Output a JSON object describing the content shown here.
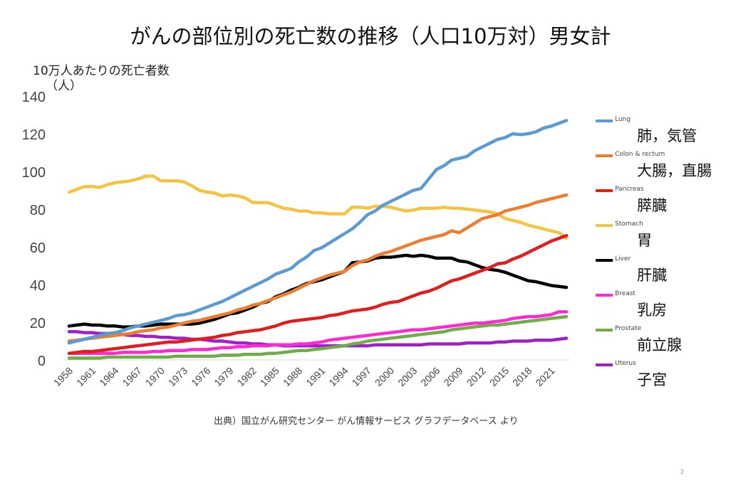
{
  "page": {
    "title": "がんの部位別の死亡数の推移（人口10万対）男女計",
    "ylabel_line1": "10万人あたりの死亡者数",
    "ylabel_line2": "（人）",
    "source": "出典）国立がん研究センター がん情報サービス グラフデータベース より",
    "page_number": "2"
  },
  "chart_data": {
    "type": "line",
    "title": "がんの部位別の死亡数の推移（人口10万対）男女計",
    "xlabel": "",
    "ylabel": "10万人あたりの死亡者数（人）",
    "ylim": [
      0,
      140
    ],
    "yticks": [
      0,
      20,
      40,
      60,
      80,
      100,
      120,
      140
    ],
    "grid": false,
    "legend_position": "right",
    "x": [
      1958,
      1959,
      1960,
      1961,
      1962,
      1963,
      1964,
      1965,
      1966,
      1967,
      1968,
      1969,
      1970,
      1971,
      1972,
      1973,
      1974,
      1975,
      1976,
      1977,
      1978,
      1979,
      1980,
      1981,
      1982,
      1983,
      1984,
      1985,
      1986,
      1987,
      1988,
      1989,
      1990,
      1991,
      1992,
      1993,
      1994,
      1995,
      1996,
      1997,
      1998,
      1999,
      2000,
      2001,
      2002,
      2003,
      2004,
      2005,
      2006,
      2007,
      2008,
      2009,
      2010,
      2011,
      2012,
      2013,
      2014,
      2015,
      2016,
      2017,
      2018,
      2019,
      2020,
      2021,
      2022,
      2023
    ],
    "xtick_labels": [
      "1958",
      "1961",
      "1964",
      "1967",
      "1970",
      "1973",
      "1976",
      "1979",
      "1982",
      "1985",
      "1988",
      "1991",
      "1994",
      "1997",
      "2000",
      "2003",
      "2006",
      "2009",
      "2012",
      "2015",
      "2018",
      "2021"
    ],
    "series": [
      {
        "name": "Lung",
        "name_ja": "肺，気管",
        "color": "#5b9bd5",
        "values": [
          9,
          10,
          11,
          12,
          13,
          14,
          14.5,
          15.5,
          17,
          18,
          19,
          20,
          21,
          22,
          23.5,
          24,
          25,
          26.5,
          28,
          29.5,
          31,
          33,
          35,
          37,
          39,
          41,
          43,
          45.5,
          47,
          48.5,
          52,
          54.5,
          58,
          59.5,
          62,
          64.5,
          67,
          69.5,
          73,
          77,
          79,
          82,
          84,
          86,
          88,
          90,
          91,
          96,
          101,
          103,
          106,
          107,
          108,
          111,
          113,
          115,
          117,
          118,
          120,
          119.5,
          120,
          121,
          123,
          124,
          125.5,
          127
        ]
      },
      {
        "name": "Colon & rectum",
        "name_ja": "大腸，直腸",
        "color": "#ed7d31",
        "values": [
          10,
          10.5,
          11,
          11.5,
          12,
          12.5,
          13,
          13.5,
          14,
          15,
          15.5,
          16,
          17,
          17.5,
          18.5,
          19.5,
          20.5,
          21,
          22,
          23,
          24,
          25,
          26.5,
          27.5,
          29,
          30,
          31.5,
          33,
          34.5,
          36,
          38,
          40,
          42,
          43.5,
          45,
          46,
          47,
          50,
          52,
          53,
          55,
          56.5,
          57.5,
          59,
          60.5,
          62,
          63.5,
          64.5,
          65.5,
          66.5,
          68.5,
          67.5,
          70,
          72.5,
          75,
          76,
          77,
          79,
          80,
          81,
          82,
          83.5,
          84.5,
          85.5,
          86.5,
          87.5
        ]
      },
      {
        "name": "Pancreas",
        "name_ja": "膵臓",
        "color": "#e01e1e",
        "values": [
          3.5,
          4,
          4.5,
          4.5,
          5,
          5.5,
          6,
          6.5,
          7,
          7.5,
          8,
          8.5,
          9,
          9.5,
          9.5,
          10,
          10.5,
          11,
          11.5,
          12,
          13,
          13.5,
          14.5,
          15,
          15.5,
          16,
          17,
          18,
          19.5,
          20.5,
          21,
          21.5,
          22,
          22.5,
          23.5,
          24,
          25,
          26,
          26.5,
          27,
          28,
          29.5,
          30.5,
          31,
          32.5,
          34,
          35.5,
          36.5,
          38,
          40,
          42,
          43,
          44.5,
          46,
          47.5,
          49,
          51,
          51.5,
          53.5,
          55,
          57,
          59,
          61,
          63,
          64.5,
          66
        ]
      },
      {
        "name": "Stomach",
        "name_ja": "胃",
        "color": "#f5c342",
        "values": [
          89,
          90.5,
          92,
          92,
          91.5,
          93,
          94,
          94.5,
          95,
          96,
          97.5,
          97.5,
          95,
          95,
          95,
          94.5,
          92.5,
          90,
          89,
          88.5,
          87,
          87.5,
          87,
          86,
          83.5,
          83.5,
          83.5,
          82,
          80.5,
          80,
          79,
          79,
          78,
          78,
          77.5,
          77.5,
          77.5,
          81,
          81,
          80.5,
          81.5,
          81.5,
          81,
          80,
          79,
          79.5,
          80.5,
          80.5,
          80.5,
          81,
          80.5,
          80.5,
          80,
          79.5,
          79,
          78.5,
          77.5,
          75,
          74,
          73,
          71.5,
          70.5,
          69.5,
          68.5,
          67.5,
          64.5
        ]
      },
      {
        "name": "Liver",
        "name_ja": "肝臓",
        "color": "#000000",
        "values": [
          18,
          18.5,
          19,
          18.5,
          18.5,
          18,
          18,
          17.5,
          17.5,
          18,
          18,
          18.5,
          19,
          19,
          19,
          19,
          19,
          19.5,
          20.5,
          21.5,
          23,
          24.5,
          25,
          26.5,
          28,
          30,
          31,
          33.5,
          35,
          37,
          38.5,
          40.5,
          41.5,
          42.5,
          44,
          45.5,
          47,
          51.5,
          52,
          52.5,
          54,
          54.5,
          54.5,
          55,
          55.5,
          55,
          55.5,
          55,
          54,
          54,
          54,
          52.5,
          52,
          50.5,
          49,
          48,
          47.5,
          46.5,
          45,
          43.5,
          42,
          41.5,
          40.5,
          39.5,
          39,
          38.5
        ]
      },
      {
        "name": "Breast",
        "name_ja": "乳房",
        "color": "#ff29d4",
        "values": [
          3.5,
          3.5,
          3.5,
          3.5,
          3.5,
          3.5,
          3.5,
          4,
          4,
          4,
          4,
          4.5,
          4.5,
          5,
          5,
          5,
          5.5,
          5.5,
          5.5,
          6,
          6.5,
          6.5,
          7,
          7,
          7.5,
          7.5,
          7.5,
          8,
          8,
          8,
          8.5,
          8.5,
          9,
          9.5,
          10.5,
          11,
          11.5,
          12,
          12.5,
          13,
          13.5,
          14,
          14.5,
          15,
          15.5,
          16,
          16,
          16.5,
          17,
          17.5,
          18,
          18.5,
          19,
          19.5,
          19.5,
          20,
          20.5,
          21,
          22,
          22.5,
          23,
          23,
          23.5,
          24,
          25.5,
          25.5
        ]
      },
      {
        "name": "Prostate",
        "name_ja": "前立腺",
        "color": "#70ad47",
        "values": [
          1,
          1,
          1,
          1,
          1,
          1.5,
          1.5,
          1.5,
          1.5,
          1.5,
          1.5,
          1.5,
          1.5,
          1.5,
          2,
          2,
          2,
          2,
          2,
          2,
          2.5,
          2.5,
          2.5,
          3,
          3,
          3,
          3.5,
          3.5,
          4,
          4.5,
          5,
          5,
          5.5,
          6,
          6.5,
          7,
          7.5,
          8.5,
          9,
          10,
          10.5,
          11,
          11.5,
          12,
          12.5,
          13,
          13.5,
          14,
          14.5,
          15,
          16,
          16.5,
          17,
          17.5,
          18,
          18.5,
          18.5,
          19,
          19.5,
          20,
          20.5,
          21,
          21.5,
          22,
          22.5,
          23
        ]
      },
      {
        "name": "Uterus",
        "name_ja": "子宮",
        "color": "#a020c8",
        "values": [
          15,
          15,
          14.5,
          14.5,
          14,
          14,
          13.5,
          13.5,
          13,
          13,
          12.5,
          12.5,
          12,
          12,
          11.5,
          11.5,
          11,
          11,
          10.5,
          10,
          10,
          9.5,
          9,
          9,
          8.5,
          8.5,
          8,
          8,
          7.5,
          7.5,
          7.5,
          7.5,
          7.5,
          7.5,
          7.5,
          7.5,
          7.5,
          7.5,
          7.5,
          7.5,
          8,
          8,
          8,
          8,
          8,
          8,
          8,
          8.5,
          8.5,
          8.5,
          8.5,
          8.5,
          9,
          9,
          9,
          9,
          9.5,
          9.5,
          10,
          10,
          10,
          10.5,
          10.5,
          10.5,
          11,
          11.5
        ]
      }
    ]
  }
}
